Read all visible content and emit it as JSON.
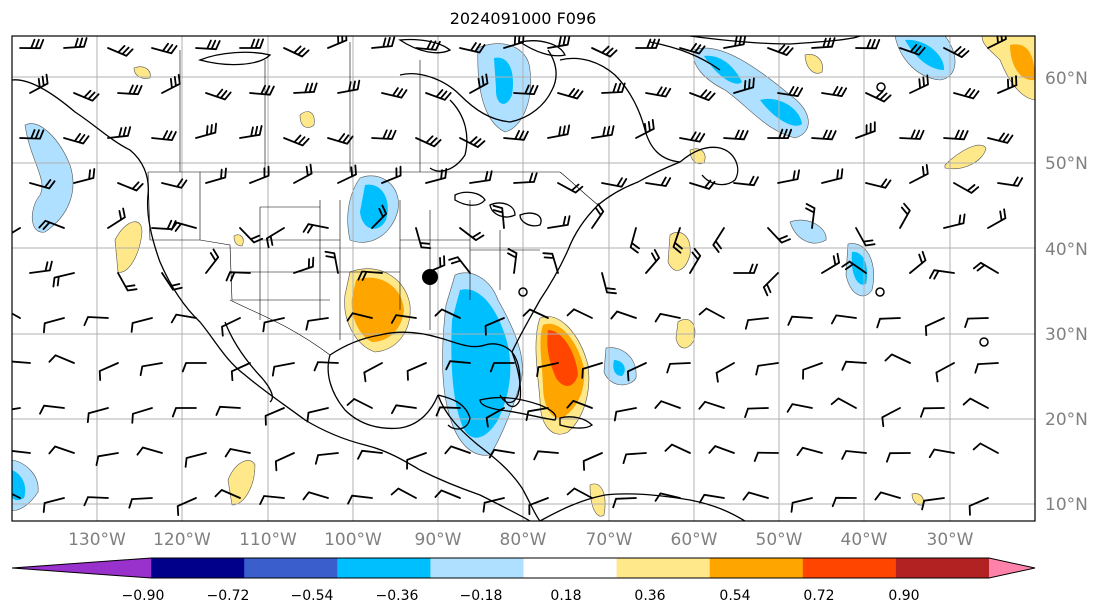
{
  "title": "2024091000 F096",
  "lat_labels": [
    "60°N",
    "50°N",
    "40°N",
    "30°N",
    "20°N",
    "10°N"
  ],
  "lon_labels": [
    "130°W",
    "120°W",
    "110°W",
    "100°W",
    "90°W",
    "80°W",
    "70°W",
    "60°W",
    "50°W",
    "40°W",
    "30°W"
  ],
  "colorbar": {
    "ticks": [
      "−0.90",
      "−0.72",
      "−0.54",
      "−0.36",
      "−0.18",
      "0.18",
      "0.36",
      "0.54",
      "0.72",
      "0.90"
    ],
    "colors": [
      "#9932CC",
      "#00008B",
      "#3A5FCD",
      "#00BFFF",
      "#B0E0FF",
      "#FFFFFF",
      "#FFE88A",
      "#FFA500",
      "#FF4500",
      "#B22222",
      "#FF82AB"
    ]
  },
  "colors": {
    "land_outline": "#000000",
    "grid": "#b0b0b0",
    "label": "#808080"
  }
}
